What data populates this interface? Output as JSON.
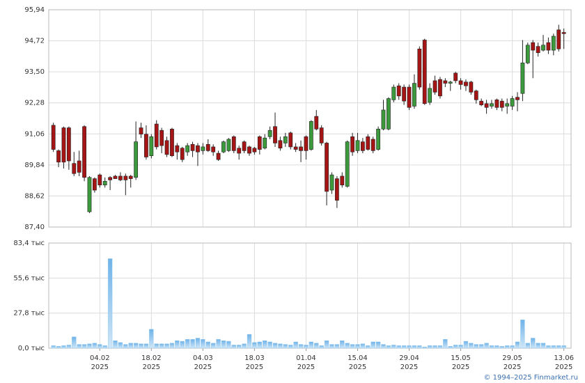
{
  "chart_data": [
    {
      "type": "candlestick",
      "up_color": "#3c9a3c",
      "down_color": "#a51515",
      "xlim": [
        -0.9,
        100.4
      ],
      "xticks": [
        9,
        19,
        29,
        39,
        49,
        59,
        69,
        79,
        89,
        99
      ],
      "ylim": [
        87.4,
        95.94
      ],
      "yticks": [
        {
          "value": 87.4,
          "label": "87,40"
        },
        {
          "value": 88.62,
          "label": "88,62"
        },
        {
          "value": 89.84,
          "label": "89,84"
        },
        {
          "value": 91.06,
          "label": "91,06"
        },
        {
          "value": 92.28,
          "label": "92,28"
        },
        {
          "value": 93.5,
          "label": "93,50"
        },
        {
          "value": 94.72,
          "label": "94,72"
        },
        {
          "value": 95.94,
          "label": "95,94"
        }
      ],
      "grid": true,
      "open": [
        91.4,
        90.4,
        91.3,
        91.3,
        89.9,
        90.0,
        91.35,
        88.0,
        89.3,
        89.45,
        89.05,
        89.35,
        89.4,
        89.4,
        89.4,
        89.4,
        89.35,
        91.3,
        91.05,
        90.2,
        91.45,
        91.2,
        90.8,
        91.25,
        90.6,
        90.5,
        90.35,
        90.65,
        90.6,
        90.4,
        90.65,
        90.55,
        90.3,
        90.35,
        90.4,
        90.95,
        90.5,
        90.75,
        90.55,
        90.5,
        90.95,
        90.5,
        90.95,
        91.35,
        90.8,
        90.7,
        91.1,
        90.55,
        90.55,
        90.95,
        90.45,
        91.75,
        91.3,
        90.7,
        88.85,
        89.3,
        89.4,
        89.0,
        90.95,
        90.4,
        90.75,
        90.95,
        90.85,
        90.45,
        91.25,
        91.25,
        92.4,
        92.95,
        92.9,
        92.9,
        92.15,
        94.4,
        94.75,
        92.3,
        93.15,
        93.2,
        93.15,
        93.05,
        93.45,
        93.15,
        93.1,
        93.1,
        92.75,
        92.35,
        92.25,
        92.15,
        92.4,
        92.35,
        92.15,
        92.15,
        92.5,
        92.65,
        93.85,
        94.65,
        94.5,
        94.35,
        94.65,
        94.35,
        95.15,
        95.05
      ],
      "high": [
        91.5,
        90.45,
        91.35,
        91.35,
        90.35,
        90.4,
        91.4,
        89.4,
        89.35,
        89.5,
        89.35,
        89.4,
        89.45,
        89.55,
        89.5,
        89.45,
        91.55,
        91.5,
        91.4,
        91.05,
        91.6,
        91.3,
        90.95,
        91.3,
        90.7,
        90.55,
        90.7,
        90.75,
        90.7,
        90.7,
        90.85,
        90.65,
        90.4,
        90.8,
        90.9,
        91.0,
        90.6,
        90.8,
        90.6,
        90.55,
        91.0,
        91.05,
        91.35,
        91.9,
        90.95,
        91.1,
        91.15,
        90.7,
        90.8,
        91.0,
        91.6,
        92.0,
        91.4,
        90.75,
        89.55,
        89.4,
        89.55,
        90.8,
        91.1,
        91.1,
        90.9,
        91.05,
        90.95,
        91.35,
        92.4,
        92.5,
        93.0,
        93.05,
        93.0,
        93.0,
        93.4,
        94.5,
        94.8,
        93.05,
        93.35,
        93.3,
        93.25,
        93.15,
        93.5,
        93.25,
        93.2,
        93.15,
        92.8,
        92.45,
        92.4,
        92.4,
        92.45,
        92.45,
        92.45,
        92.55,
        92.7,
        94.75,
        94.65,
        94.75,
        94.65,
        94.95,
        94.85,
        95.0,
        95.35,
        95.2
      ],
      "low": [
        90.35,
        89.75,
        89.7,
        89.65,
        89.4,
        89.4,
        89.2,
        87.95,
        88.75,
        88.95,
        88.95,
        88.85,
        89.3,
        89.2,
        88.65,
        88.95,
        89.25,
        90.9,
        90.05,
        90.1,
        90.45,
        90.3,
        90.15,
        90.15,
        90.05,
        89.95,
        90.2,
        90.15,
        89.8,
        90.25,
        90.35,
        90.2,
        90.0,
        90.3,
        90.35,
        90.3,
        90.05,
        90.3,
        90.2,
        90.25,
        90.25,
        90.45,
        90.85,
        90.55,
        90.4,
        90.55,
        90.45,
        90.35,
        89.95,
        90.05,
        90.4,
        91.2,
        90.6,
        88.25,
        88.7,
        88.15,
        88.95,
        88.95,
        90.2,
        90.3,
        90.3,
        90.4,
        90.3,
        90.4,
        91.2,
        91.2,
        92.3,
        92.4,
        92.2,
        92.0,
        92.05,
        92.8,
        92.2,
        92.2,
        92.6,
        92.45,
        92.9,
        92.75,
        93.05,
        92.8,
        92.75,
        92.6,
        92.25,
        92.15,
        91.85,
        92.05,
        92.0,
        91.95,
        91.85,
        92.0,
        91.95,
        92.35,
        93.8,
        93.25,
        94.1,
        94.3,
        94.2,
        94.15,
        94.3,
        94.4
      ],
      "close": [
        90.45,
        89.95,
        89.95,
        90.0,
        89.5,
        89.55,
        89.35,
        89.35,
        88.85,
        89.05,
        89.2,
        89.25,
        89.3,
        89.25,
        89.25,
        89.3,
        90.75,
        91.05,
        90.15,
        90.95,
        90.55,
        90.6,
        90.25,
        90.2,
        90.35,
        90.05,
        90.6,
        90.4,
        90.35,
        90.55,
        90.4,
        90.35,
        90.05,
        90.75,
        90.85,
        90.4,
        90.3,
        90.4,
        90.3,
        90.35,
        90.45,
        90.9,
        91.2,
        90.7,
        90.5,
        90.95,
        90.55,
        90.45,
        90.4,
        90.4,
        91.55,
        91.25,
        90.7,
        88.8,
        89.45,
        88.45,
        89.05,
        90.75,
        90.35,
        90.8,
        90.4,
        90.45,
        90.4,
        91.25,
        92.0,
        92.45,
        92.9,
        92.55,
        92.35,
        92.1,
        93.05,
        92.9,
        92.25,
        92.85,
        92.7,
        92.55,
        93.05,
        93.1,
        93.15,
        93.0,
        92.95,
        92.7,
        92.4,
        92.2,
        92.1,
        92.25,
        92.1,
        92.1,
        92.25,
        92.45,
        92.4,
        93.85,
        94.55,
        94.35,
        94.25,
        94.55,
        94.35,
        94.9,
        94.4,
        95.0
      ]
    },
    {
      "type": "bar",
      "color": "#8cc6f0",
      "xlim": [
        -0.9,
        100.4
      ],
      "xticks": [
        {
          "value": 9,
          "label": "04.02",
          "year": "2025"
        },
        {
          "value": 19,
          "label": "18.02",
          "year": "2025"
        },
        {
          "value": 29,
          "label": "04.03",
          "year": "2025"
        },
        {
          "value": 39,
          "label": "18.03",
          "year": "2025"
        },
        {
          "value": 49,
          "label": "01.04",
          "year": "2025"
        },
        {
          "value": 59,
          "label": "15.04",
          "year": "2025"
        },
        {
          "value": 69,
          "label": "29.04",
          "year": "2025"
        },
        {
          "value": 79,
          "label": "15.05",
          "year": "2025"
        },
        {
          "value": 89,
          "label": "29.05",
          "year": "2025"
        },
        {
          "value": 99,
          "label": "13.06",
          "year": "2025"
        }
      ],
      "ylim": [
        0,
        83.4
      ],
      "yticks": [
        {
          "value": 0,
          "label": "0,0 тыс"
        },
        {
          "value": 27.8,
          "label": "27,8 тыс"
        },
        {
          "value": 55.6,
          "label": "55,6 тыс"
        },
        {
          "value": 83.4,
          "label": "83,4 тыс"
        }
      ],
      "grid": true,
      "values": [
        2,
        1.5,
        2,
        2.5,
        9,
        3,
        3,
        3.5,
        4,
        3,
        2,
        71,
        6,
        4.5,
        3,
        4,
        4,
        3.5,
        3.5,
        15,
        3.5,
        3.5,
        3.5,
        4,
        6,
        5.5,
        7,
        7,
        8,
        7,
        5,
        4,
        7,
        6,
        5.5,
        2.5,
        2.5,
        3.5,
        11,
        4.5,
        5,
        6,
        5,
        4,
        3.5,
        3,
        2.5,
        5,
        3,
        2.5,
        5,
        4,
        2,
        6,
        3,
        3,
        6,
        4,
        3,
        3,
        3.5,
        2,
        5,
        5,
        3,
        2,
        2.5,
        2,
        2,
        2,
        2,
        2,
        1,
        2,
        2,
        2,
        7,
        1.5,
        2.5,
        2.5,
        5.5,
        4,
        3,
        3,
        4,
        2,
        2,
        1.5,
        2,
        2,
        5,
        22.5,
        4,
        8,
        4,
        4,
        2,
        2,
        2,
        2
      ]
    }
  ],
  "copyright": "© 1994–2025 Finmarket.ru"
}
